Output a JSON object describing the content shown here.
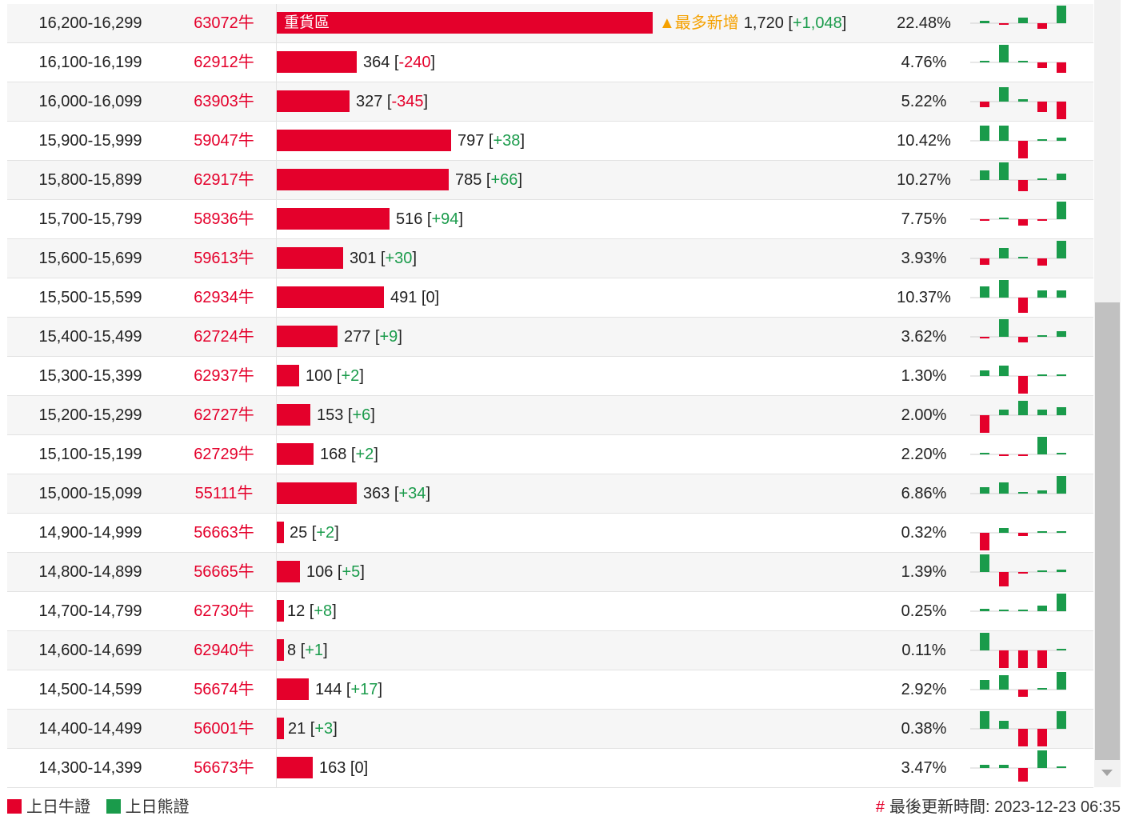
{
  "colors": {
    "bull": "#e4002b",
    "bear": "#1a9b4b",
    "hot": "#f5a100"
  },
  "table": {
    "rows": [
      {
        "range": "16,200-16,299",
        "code": "63072牛",
        "count": "1,720",
        "change": "+1,048",
        "change_sign": "pos",
        "pct": "22.48%",
        "bar_fraction": 1.0,
        "bar_label": "重貨區",
        "hot_label": "▲最多新增",
        "spark": [
          0.15,
          -0.1,
          0.3,
          -0.3,
          1.0
        ]
      },
      {
        "range": "16,100-16,199",
        "code": "62912牛",
        "count": "364",
        "change": "-240",
        "change_sign": "neg",
        "pct": "4.76%",
        "bar_fraction": 0.213,
        "spark": [
          0,
          1.0,
          0.1,
          -0.3,
          -0.6
        ]
      },
      {
        "range": "16,000-16,099",
        "code": "63903牛",
        "count": "327",
        "change": "-345",
        "change_sign": "neg",
        "pct": "5.22%",
        "bar_fraction": 0.194,
        "spark": [
          -0.3,
          0.8,
          0.15,
          -0.6,
          -1.0
        ]
      },
      {
        "range": "15,900-15,999",
        "code": "59047牛",
        "count": "797",
        "change": "+38",
        "change_sign": "pos",
        "pct": "10.42%",
        "bar_fraction": 0.464,
        "spark": [
          0.85,
          0.85,
          -1.0,
          0.1,
          0.2
        ]
      },
      {
        "range": "15,800-15,899",
        "code": "62917牛",
        "count": "785",
        "change": "+66",
        "change_sign": "pos",
        "pct": "10.27%",
        "bar_fraction": 0.457,
        "spark": [
          0.55,
          1.0,
          -0.65,
          0.1,
          0.35
        ]
      },
      {
        "range": "15,700-15,799",
        "code": "58936牛",
        "count": "516",
        "change": "+94",
        "change_sign": "pos",
        "pct": "7.75%",
        "bar_fraction": 0.3,
        "spark": [
          -0.1,
          0.1,
          -0.35,
          -0.1,
          1.0
        ]
      },
      {
        "range": "15,600-15,699",
        "code": "59613牛",
        "count": "301",
        "change": "+30",
        "change_sign": "pos",
        "pct": "3.93%",
        "bar_fraction": 0.176,
        "spark": [
          -0.35,
          0.6,
          0.1,
          -0.4,
          1.0
        ]
      },
      {
        "range": "15,500-15,599",
        "code": "62934牛",
        "count": "491",
        "change": "0",
        "change_sign": "zero",
        "pct": "10.37%",
        "bar_fraction": 0.286,
        "spark": [
          0.65,
          1.0,
          -0.85,
          0.4,
          0.4
        ]
      },
      {
        "range": "15,400-15,499",
        "code": "62724牛",
        "count": "277",
        "change": "+9",
        "change_sign": "pos",
        "pct": "3.62%",
        "bar_fraction": 0.162,
        "spark": [
          -0.1,
          1.0,
          -0.3,
          0,
          0.3
        ]
      },
      {
        "range": "15,300-15,399",
        "code": "62937牛",
        "count": "100",
        "change": "+2",
        "change_sign": "pos",
        "pct": "1.30%",
        "bar_fraction": 0.059,
        "spark": [
          0.3,
          0.6,
          -1.0,
          0.1,
          0.1
        ]
      },
      {
        "range": "15,200-15,299",
        "code": "62727牛",
        "count": "153",
        "change": "+6",
        "change_sign": "pos",
        "pct": "2.00%",
        "bar_fraction": 0.09,
        "spark": [
          -1.0,
          0.3,
          0.8,
          0.3,
          0.45
        ]
      },
      {
        "range": "15,100-15,199",
        "code": "62729牛",
        "count": "168",
        "change": "+2",
        "change_sign": "pos",
        "pct": "2.20%",
        "bar_fraction": 0.098,
        "spark": [
          0,
          -0.05,
          -0.1,
          1.0,
          0.1
        ]
      },
      {
        "range": "15,000-15,099",
        "code": "55111牛",
        "count": "363",
        "change": "+34",
        "change_sign": "pos",
        "pct": "6.86%",
        "bar_fraction": 0.212,
        "spark": [
          0.35,
          0.65,
          0.05,
          0.2,
          1.0
        ]
      },
      {
        "range": "14,900-14,999",
        "code": "56663牛",
        "count": "25",
        "change": "+2",
        "change_sign": "pos",
        "pct": "0.32%",
        "bar_fraction": 0.016,
        "spark": [
          -1.0,
          0.25,
          -0.2,
          0,
          0.1
        ]
      },
      {
        "range": "14,800-14,899",
        "code": "56665牛",
        "count": "106",
        "change": "+5",
        "change_sign": "pos",
        "pct": "1.39%",
        "bar_fraction": 0.062,
        "spark": [
          1.0,
          -0.8,
          -0.1,
          0.1,
          0.15
        ]
      },
      {
        "range": "14,700-14,799",
        "code": "62730牛",
        "count": "12",
        "change": "+8",
        "change_sign": "pos",
        "pct": "0.25%",
        "bar_fraction": 0.01,
        "spark": [
          0.15,
          0,
          0,
          0.3,
          1.0
        ]
      },
      {
        "range": "14,600-14,699",
        "code": "62940牛",
        "count": "8",
        "change": "+1",
        "change_sign": "pos",
        "pct": "0.11%",
        "bar_fraction": 0.008,
        "spark": [
          1.0,
          -1.0,
          -1.0,
          -1.0,
          0
        ]
      },
      {
        "range": "14,500-14,599",
        "code": "56674牛",
        "count": "144",
        "change": "+17",
        "change_sign": "pos",
        "pct": "2.92%",
        "bar_fraction": 0.085,
        "spark": [
          0.55,
          0.8,
          -0.4,
          0,
          1.0
        ]
      },
      {
        "range": "14,400-14,499",
        "code": "56001牛",
        "count": "21",
        "change": "+3",
        "change_sign": "pos",
        "pct": "0.38%",
        "bar_fraction": 0.013,
        "spark": [
          1.0,
          0.45,
          -1.0,
          -1.0,
          1.0
        ]
      },
      {
        "range": "14,300-14,399",
        "code": "56673牛",
        "count": "163",
        "change": "0",
        "change_sign": "zero",
        "pct": "3.47%",
        "bar_fraction": 0.096,
        "spark": [
          0.2,
          0.2,
          -0.75,
          1.0,
          0
        ]
      }
    ]
  },
  "legend": {
    "bull_label": "上日牛證",
    "bear_label": "上日熊證"
  },
  "footer": {
    "updated_label": "最後更新時間: 2023-12-23 06:35"
  },
  "icons": {
    "updated": "hash-icon",
    "scroll_down": "chevron-down-icon"
  }
}
